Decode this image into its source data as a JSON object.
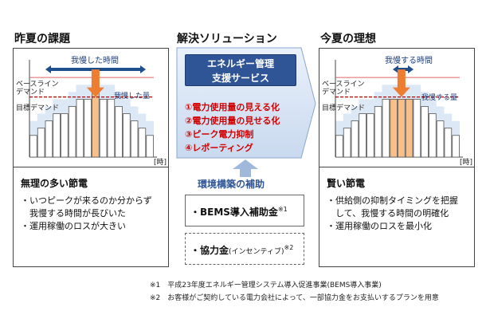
{
  "left": {
    "title": "昨夏の課題",
    "patience_label": "我慢した時間",
    "patience_amount_label": "我慢した量",
    "baseline_label_1": "ベースライン",
    "baseline_label_2": "デマンド",
    "target_label": "目標デマンド",
    "axis_label": "[時]",
    "sub_title": "無理の多い節電",
    "bullets": [
      "・いつピークが来るのか分からず",
      "我慢する時間が長びいた",
      "・運用稼働のロスが大きい"
    ]
  },
  "center": {
    "title": "解決ソリューション",
    "service_title_1": "エネルギー管理",
    "service_title_2": "支援サービス",
    "items": [
      "①電力使用量の見える化",
      "②電力使用量の見せる化",
      "③ピーク電力抑制",
      "④レポーティング"
    ],
    "env_title": "環境構築の補助",
    "box1": {
      "text": "・BEMS導入補助金",
      "mark": "※1"
    },
    "box2": {
      "text": "・協力金",
      "small": "(インセンティブ)",
      "mark": "※2"
    }
  },
  "right": {
    "title": "今夏の理想",
    "patience_label": "我慢する時間",
    "patience_amount_label": "我慢する量",
    "baseline_label_1": "ベースライン",
    "baseline_label_2": "デマンド",
    "target_label": "目標デマンド",
    "axis_label": "[時]",
    "sub_title": "賢い節電",
    "bullets": [
      "・供給側の抑制タイミングを把握",
      "して、我慢する時間の明確化",
      "・運用稼働のロスを最小化"
    ]
  },
  "footnotes": [
    "※1　平成23年度エネルギー管理システム導入促進事業(BEMS導入事業)",
    "※2　お客様がご契約している電力会社によって、一部協力金をお支払いするプランを用意"
  ],
  "chart_data": [
    {
      "type": "bar",
      "series": [
        {
          "name": "",
          "values": [
            3,
            4,
            5,
            6,
            6,
            7,
            8,
            8,
            9,
            8,
            8,
            7,
            6,
            5,
            4,
            3
          ]
        }
      ],
      "highlight_index": 8,
      "baseline": 11,
      "target": 8.3,
      "ylim": [
        0,
        13
      ]
    },
    {
      "type": "bar",
      "series": [
        {
          "name": "",
          "values": [
            3,
            4,
            5,
            6,
            6,
            7,
            8,
            8,
            8,
            8,
            8,
            7,
            6,
            5,
            4,
            3
          ]
        }
      ],
      "highlight_index": 8,
      "baseline": 11,
      "target": 8.3,
      "ylim": [
        0,
        13
      ]
    }
  ],
  "colors": {
    "bar": "#ffffff",
    "bar_stroke": "#555555",
    "highlight": "#f7c08a",
    "baseline": "#e06666",
    "target": "#c00000",
    "shade": "#c6d9f1",
    "arrow": "#1f4e8c",
    "orange_arrow": "#ed7d31"
  }
}
